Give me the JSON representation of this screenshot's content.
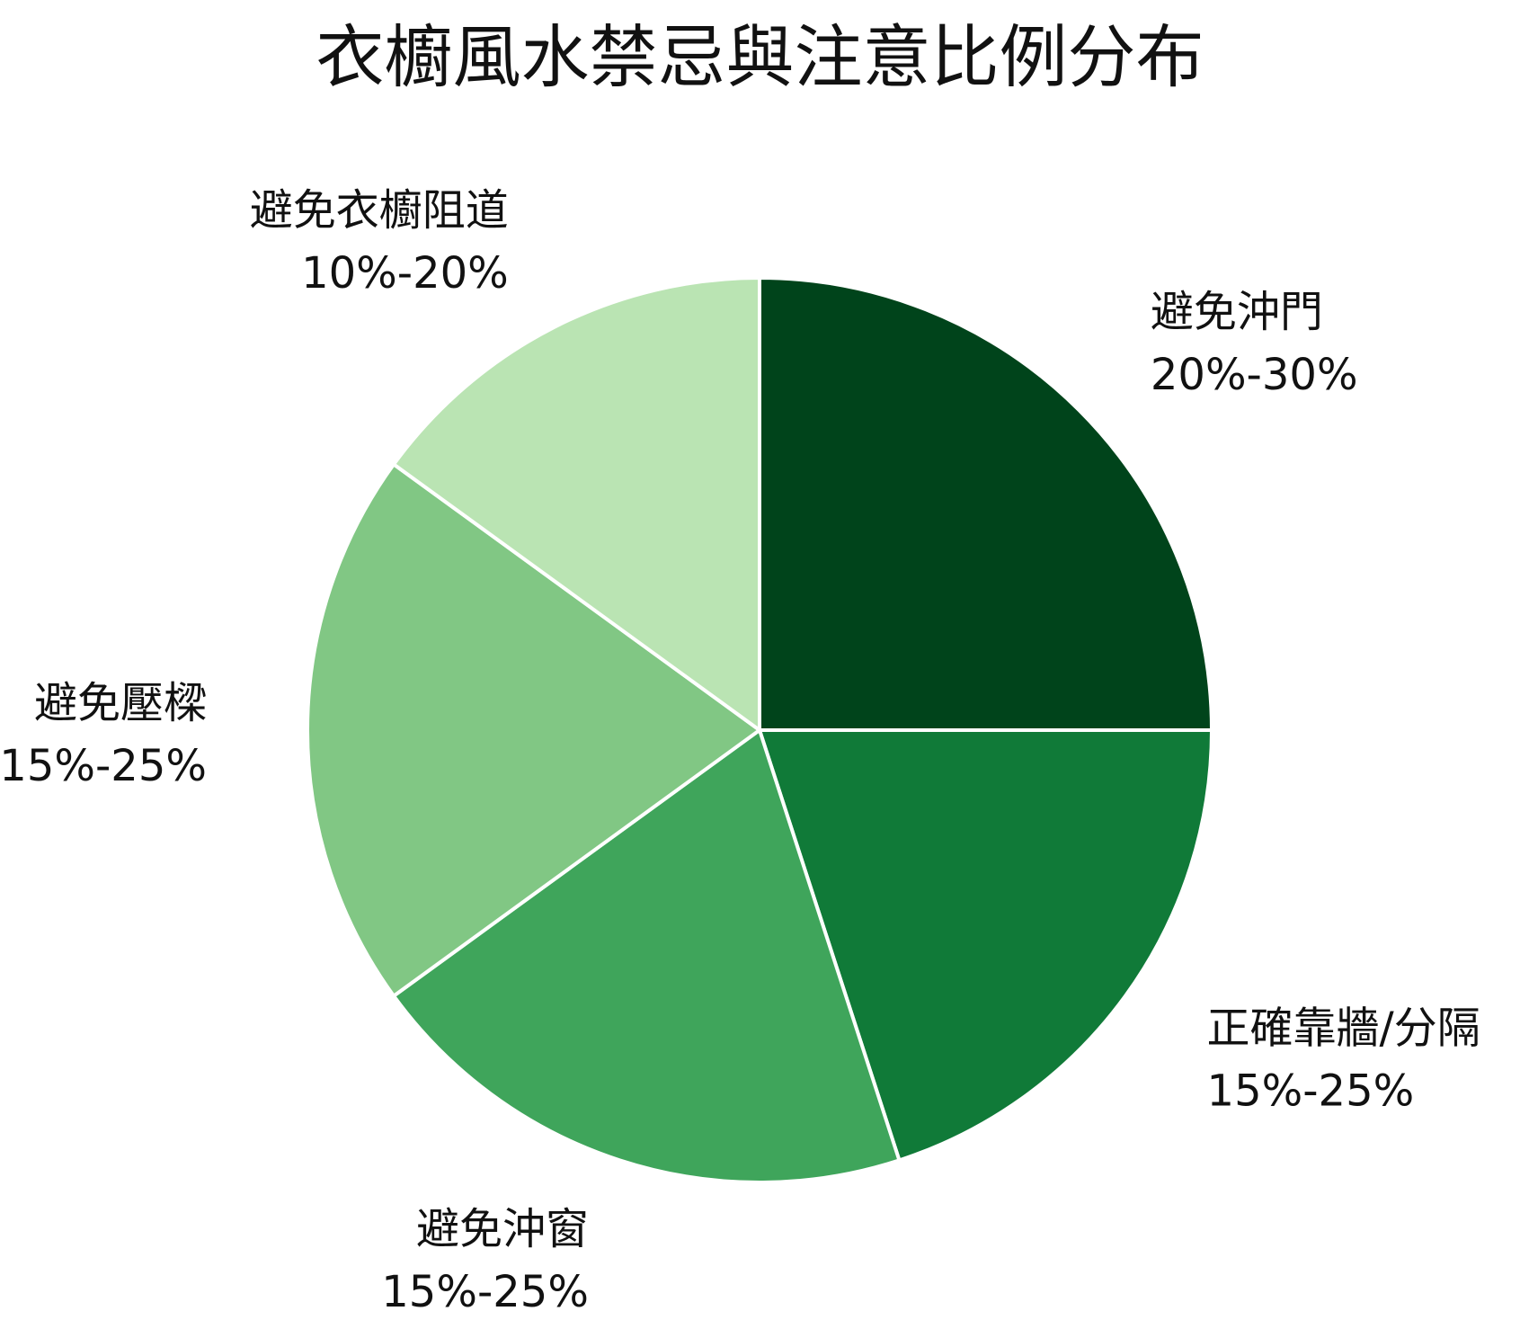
{
  "chart_data": {
    "type": "pie",
    "title": "衣櫥風水禁忌與注意比例分布",
    "slices": [
      {
        "label": "避免沖門",
        "range": "20%-30%",
        "value": 25,
        "color": "#00441b"
      },
      {
        "label": "正確靠牆/分隔",
        "range": "15%-25%",
        "value": 20,
        "color": "#107a38"
      },
      {
        "label": "避免沖窗",
        "range": "15%-25%",
        "value": 20,
        "color": "#3fa55b"
      },
      {
        "label": "避免壓樑",
        "range": "15%-25%",
        "value": 20,
        "color": "#81c784"
      },
      {
        "label": "避免衣櫥阻道",
        "range": "10%-20%",
        "value": 15,
        "color": "#bae4b3"
      }
    ],
    "start_angle_deg": 90,
    "direction": "clockwise",
    "slice_border_color": "#ffffff",
    "legend": "none"
  }
}
